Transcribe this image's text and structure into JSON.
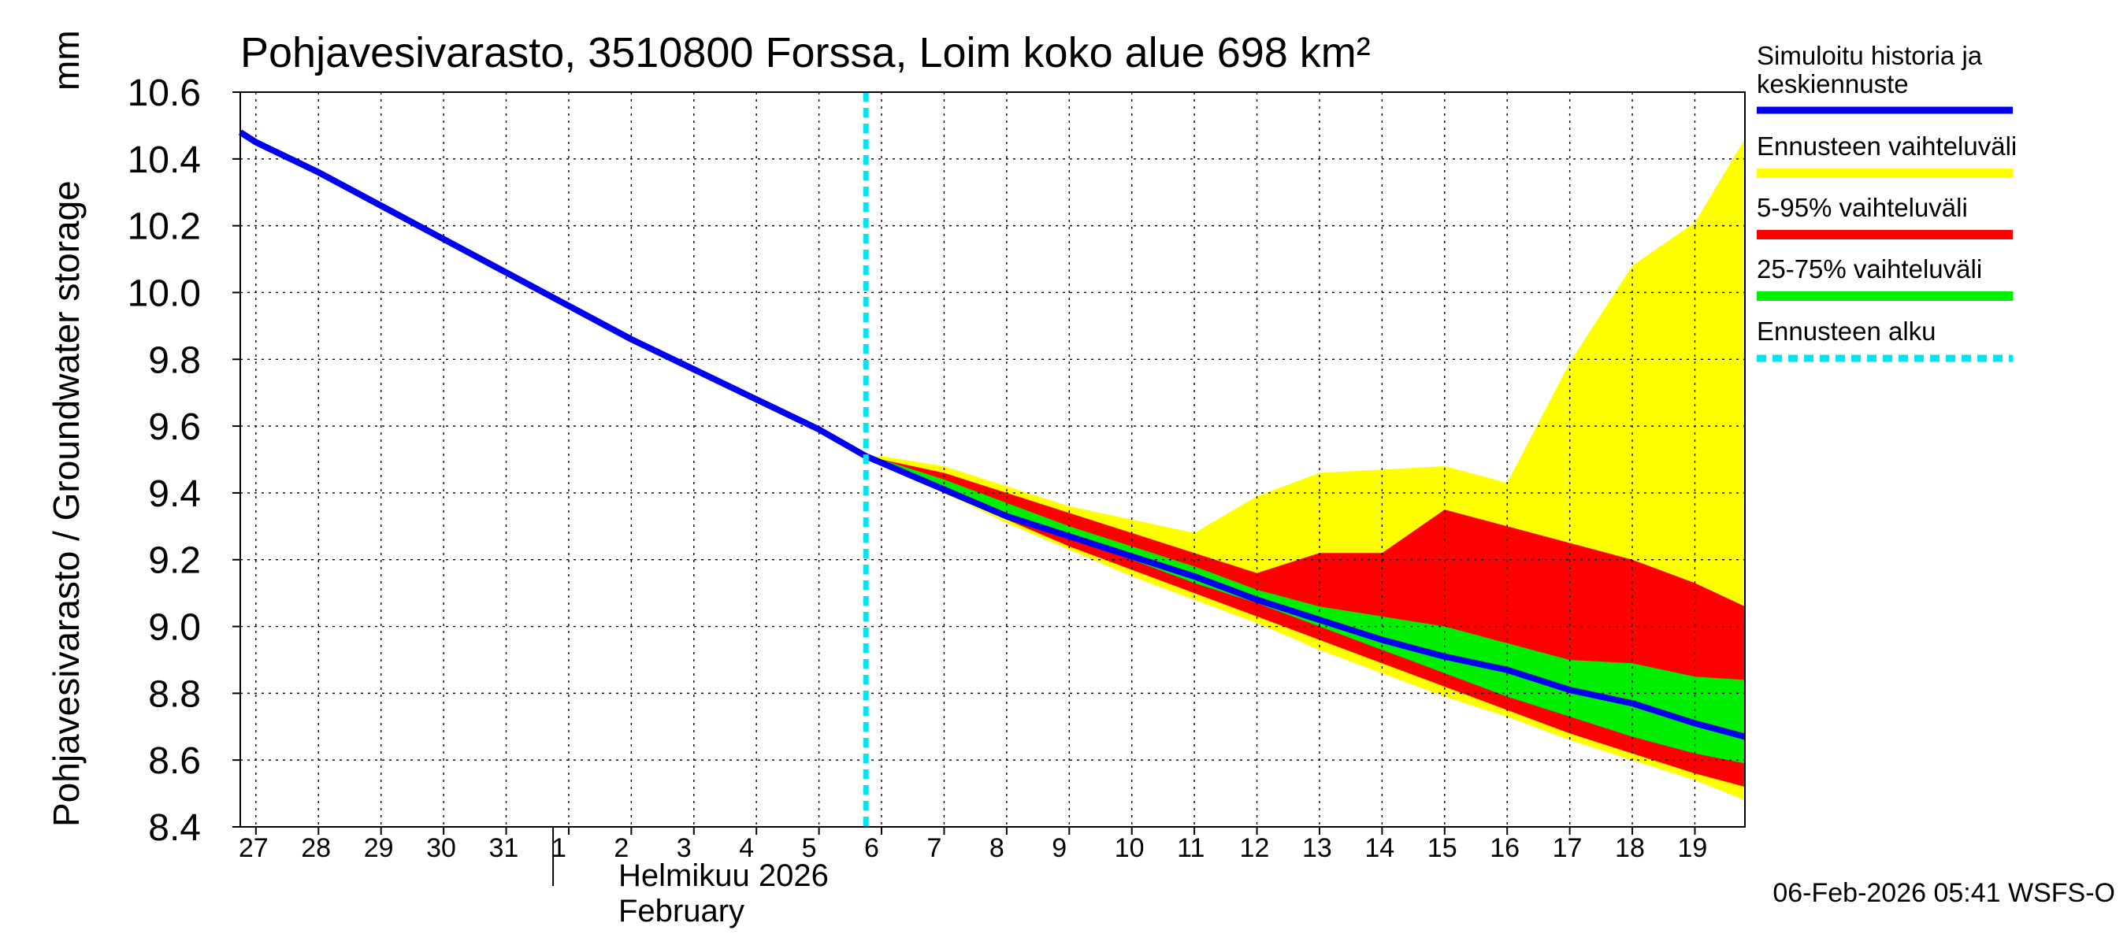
{
  "chart_data": {
    "type": "area",
    "title": "Pohjavesivarasto, 3510800 Forssa, Loim koko alue 698 km²",
    "ylabel": "Pohjavesivarasto / Groundwater storage",
    "yunit": "mm",
    "ylim": [
      8.4,
      10.6
    ],
    "yticks": [
      "8.4",
      "8.6",
      "8.8",
      "9.0",
      "9.2",
      "9.4",
      "9.6",
      "9.8",
      "10.0",
      "10.2",
      "10.4",
      "10.6"
    ],
    "xlim": [
      26.75,
      50.8
    ],
    "day_labels": [
      "27",
      "28",
      "29",
      "30",
      "31",
      "1",
      "2",
      "3",
      "4",
      "5",
      "6",
      "7",
      "8",
      "9",
      "10",
      "11",
      "12",
      "13",
      "14",
      "15",
      "16",
      "17",
      "18",
      "19"
    ],
    "month_label_fi": "Helmikuu  2026",
    "month_label_en": "February",
    "forecast_start": 36.75,
    "timestamp": "06-Feb-2026 05:41 WSFS-O",
    "legend": [
      {
        "key": "history",
        "label_line1": "Simuloitu historia ja",
        "label_line2": "keskiennuste",
        "color": "#0000ee",
        "style": "solid"
      },
      {
        "key": "band_full",
        "label_line1": "Ennusteen vaihteluväli",
        "color": "#ffff00",
        "style": "solid"
      },
      {
        "key": "band_5_95",
        "label_line1": "5-95% vaihteluväli",
        "color": "#ff0000",
        "style": "solid"
      },
      {
        "key": "band_25_75",
        "label_line1": "25-75% vaihteluväli",
        "color": "#00ee00",
        "style": "solid"
      },
      {
        "key": "forecast_start",
        "label_line1": "Ennusteen alku",
        "color": "#00e5ee",
        "style": "dashed"
      }
    ],
    "series": {
      "median": {
        "x": [
          26.75,
          27,
          28,
          29,
          30,
          31,
          32,
          33,
          34,
          35,
          36,
          36.75,
          37,
          38,
          39,
          40,
          41,
          42,
          43,
          44,
          45,
          46,
          47,
          48,
          49,
          50,
          50.8
        ],
        "y": [
          10.48,
          10.45,
          10.36,
          10.26,
          10.16,
          10.06,
          9.96,
          9.86,
          9.77,
          9.68,
          9.59,
          9.51,
          9.49,
          9.41,
          9.33,
          9.27,
          9.21,
          9.15,
          9.08,
          9.02,
          8.96,
          8.91,
          8.87,
          8.81,
          8.77,
          8.71,
          8.67
        ]
      },
      "band_full": {
        "x": [
          36.75,
          37,
          38,
          39,
          40,
          41,
          42,
          43,
          44,
          45,
          46,
          47,
          48,
          49,
          50,
          50.8
        ],
        "upper": [
          9.51,
          9.51,
          9.48,
          9.42,
          9.36,
          9.32,
          9.28,
          9.39,
          9.46,
          9.47,
          9.48,
          9.43,
          9.79,
          10.08,
          10.21,
          10.46
        ],
        "lower": [
          9.51,
          9.48,
          9.4,
          9.31,
          9.23,
          9.15,
          9.08,
          9.01,
          8.93,
          8.86,
          8.79,
          8.73,
          8.66,
          8.6,
          8.54,
          8.48
        ]
      },
      "band_5_95": {
        "x": [
          36.75,
          37,
          38,
          39,
          40,
          41,
          42,
          43,
          44,
          45,
          46,
          47,
          48,
          49,
          50,
          50.8
        ],
        "upper": [
          9.51,
          9.5,
          9.46,
          9.4,
          9.34,
          9.28,
          9.22,
          9.16,
          9.22,
          9.22,
          9.35,
          9.3,
          9.25,
          9.2,
          9.13,
          9.06
        ],
        "lower": [
          9.51,
          9.48,
          9.41,
          9.32,
          9.24,
          9.17,
          9.1,
          9.03,
          8.96,
          8.89,
          8.82,
          8.75,
          8.68,
          8.62,
          8.56,
          8.52
        ]
      },
      "band_25_75": {
        "x": [
          36.75,
          37,
          38,
          39,
          40,
          41,
          42,
          43,
          44,
          45,
          46,
          47,
          48,
          49,
          50,
          50.8
        ],
        "upper": [
          9.51,
          9.5,
          9.44,
          9.37,
          9.3,
          9.24,
          9.18,
          9.11,
          9.06,
          9.03,
          9.0,
          8.95,
          8.9,
          8.89,
          8.85,
          8.84
        ],
        "lower": [
          9.51,
          9.49,
          9.42,
          9.34,
          9.27,
          9.2,
          9.13,
          9.07,
          9.0,
          8.93,
          8.86,
          8.79,
          8.73,
          8.67,
          8.62,
          8.59
        ]
      }
    }
  }
}
